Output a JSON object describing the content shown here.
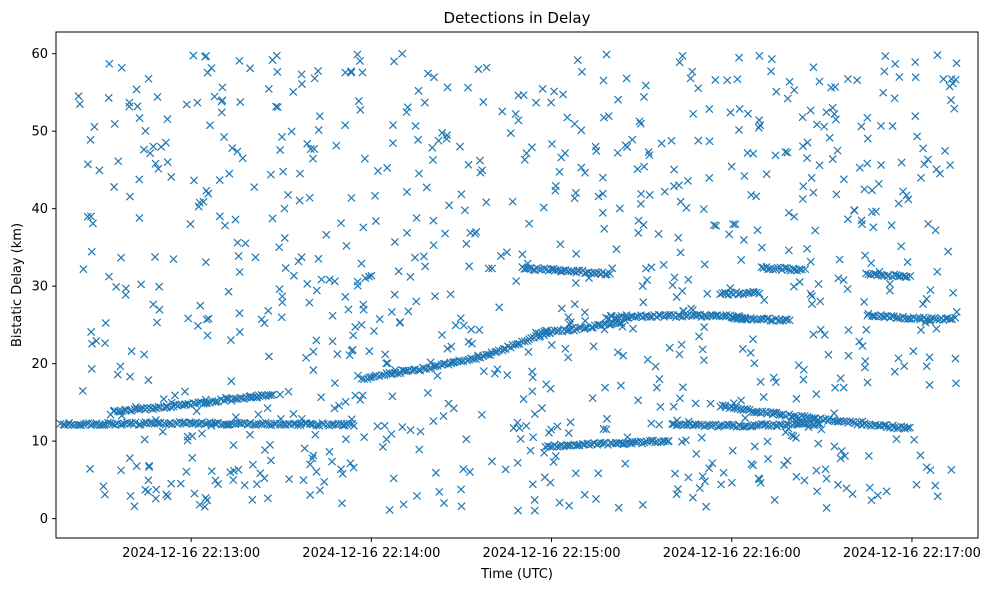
{
  "chart_data": {
    "type": "scatter",
    "title": "Detections in Delay",
    "xlabel": "Time (UTC)",
    "ylabel": "Bistatic Delay (km)",
    "marker": "x",
    "marker_color": "#1f77b4",
    "grid": false,
    "legend": "none",
    "x_unit": "time",
    "x_ticks": [
      {
        "label": "2024-12-16 22:13:00",
        "time": "22:13:00"
      },
      {
        "label": "2024-12-16 22:14:00",
        "time": "22:14:00"
      },
      {
        "label": "2024-12-16 22:15:00",
        "time": "22:15:00"
      },
      {
        "label": "2024-12-16 22:16:00",
        "time": "22:16:00"
      },
      {
        "label": "2024-12-16 22:17:00",
        "time": "22:17:00"
      }
    ],
    "xlim": [
      "22:12:15",
      "22:17:22"
    ],
    "y_ticks": [
      0,
      10,
      20,
      30,
      40,
      50,
      60
    ],
    "ylim": [
      -2.5,
      62.8
    ],
    "tracks": [
      {
        "t": [
          "22:12:15",
          "22:13:00",
          "22:13:40",
          "22:13:55"
        ],
        "y": [
          12.2,
          12.3,
          12.2,
          12.1
        ]
      },
      {
        "t": [
          "22:12:34",
          "22:13:00",
          "22:13:28"
        ],
        "y": [
          13.8,
          14.8,
          16.0
        ]
      },
      {
        "t": [
          "22:13:57",
          "22:14:05",
          "22:14:20",
          "22:14:38",
          "22:14:55",
          "22:15:00"
        ],
        "y": [
          18.0,
          18.7,
          19.5,
          21.0,
          23.5,
          24.0
        ]
      },
      {
        "t": [
          "22:14:50",
          "22:15:05",
          "22:15:20"
        ],
        "y": [
          32.3,
          32.0,
          31.6
        ]
      },
      {
        "t": [
          "22:14:55",
          "22:15:10",
          "22:15:25"
        ],
        "y": [
          24.0,
          24.5,
          25.5
        ]
      },
      {
        "t": [
          "22:15:18",
          "22:15:45",
          "22:16:00",
          "22:16:05"
        ],
        "y": [
          26.0,
          26.2,
          26.1,
          25.9
        ]
      },
      {
        "t": [
          "22:14:58",
          "22:15:25",
          "22:15:40"
        ],
        "y": [
          9.3,
          9.8,
          10.0
        ]
      },
      {
        "t": [
          "22:15:40",
          "22:16:00",
          "22:16:20",
          "22:16:30"
        ],
        "y": [
          12.1,
          12.0,
          12.1,
          12.2
        ]
      },
      {
        "t": [
          "22:15:56",
          "22:16:15",
          "22:16:35",
          "22:16:55",
          "22:17:00"
        ],
        "y": [
          14.5,
          13.5,
          12.6,
          11.8,
          11.6
        ]
      },
      {
        "t": [
          "22:15:56",
          "22:16:10"
        ],
        "y": [
          29.0,
          29.2
        ]
      },
      {
        "t": [
          "22:16:10",
          "22:16:25"
        ],
        "y": [
          32.4,
          32.0
        ]
      },
      {
        "t": [
          "22:16:45",
          "22:17:00"
        ],
        "y": [
          31.5,
          31.3
        ]
      },
      {
        "t": [
          "22:16:00",
          "22:16:20"
        ],
        "y": [
          25.9,
          25.6
        ]
      },
      {
        "t": [
          "22:16:45",
          "22:17:00",
          "22:17:15"
        ],
        "y": [
          26.3,
          25.8,
          25.8
        ]
      }
    ]
  }
}
